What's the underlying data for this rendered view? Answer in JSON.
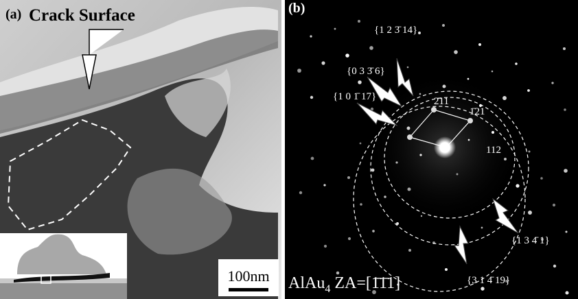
{
  "panel_a": {
    "label": "(a)",
    "annotation": "Crack Surface",
    "scale_bar": "100nm"
  },
  "panel_b": {
    "label": "(b)",
    "ring_labels": [
      "{1 2 3̄ 14}",
      "{0 3 3̄ 6}",
      "{1 0 1̄ 17}",
      "{1 3 4̄ 1}",
      "{3 1 4̄ 19}"
    ],
    "spot_labels": [
      "2̄11",
      "1̄21",
      "112"
    ],
    "zone_axis": {
      "compound": "AlAu",
      "subscript": "4",
      "axis": " ZA=[1̄1̄1]"
    }
  }
}
